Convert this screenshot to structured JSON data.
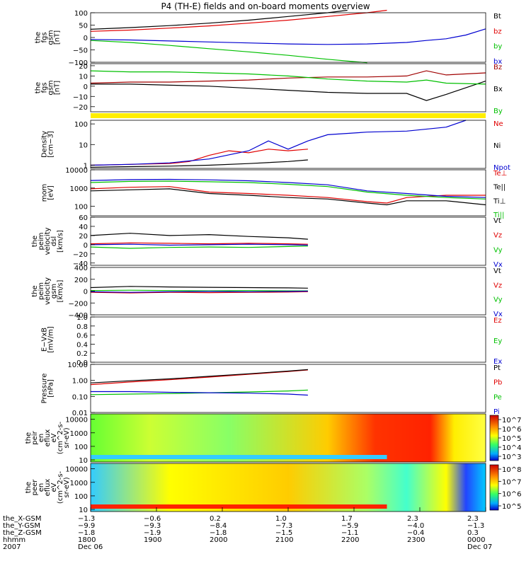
{
  "title": "P4 (TH-E) fields and on-board moments overview",
  "chart_data": [
    {
      "type": "line",
      "ylabel": [
        "the",
        "fgs",
        "gsm",
        "[nT]"
      ],
      "yticks": [
        "100",
        "50",
        "0",
        "−50",
        "−100"
      ],
      "ytick_values": [
        100,
        50,
        0,
        -50,
        -100
      ],
      "ylim": [
        -100,
        100
      ],
      "legend": [
        {
          "label": "Bt",
          "color": "#000000"
        },
        {
          "label": "bz",
          "color": "#e00000"
        },
        {
          "label": "by",
          "color": "#00c000"
        },
        {
          "label": "bx",
          "color": "#0000d0"
        }
      ],
      "series": [
        {
          "name": "Bt",
          "color": "#000000",
          "x": [
            0,
            0.1,
            0.2,
            0.3,
            0.4,
            0.5,
            0.6,
            0.65
          ],
          "y": [
            33,
            40,
            48,
            58,
            70,
            85,
            100,
            110
          ]
        },
        {
          "name": "bz",
          "color": "#e00000",
          "x": [
            0,
            0.1,
            0.2,
            0.3,
            0.4,
            0.5,
            0.6,
            0.7,
            0.75
          ],
          "y": [
            25,
            30,
            38,
            47,
            58,
            70,
            85,
            100,
            110
          ]
        },
        {
          "name": "by",
          "color": "#00c000",
          "x": [
            0,
            0.1,
            0.2,
            0.3,
            0.4,
            0.5,
            0.6,
            0.7
          ],
          "y": [
            -12,
            -20,
            -32,
            -45,
            -58,
            -72,
            -88,
            -102
          ]
        },
        {
          "name": "bx",
          "color": "#0000d0",
          "x": [
            0,
            0.1,
            0.2,
            0.3,
            0.4,
            0.5,
            0.6,
            0.7,
            0.8,
            0.85,
            0.9,
            0.95,
            1.0
          ],
          "y": [
            -8,
            -10,
            -14,
            -18,
            -22,
            -26,
            -28,
            -26,
            -20,
            -12,
            -5,
            10,
            35
          ]
        }
      ]
    },
    {
      "type": "line",
      "ylabel": [
        "the",
        "fgs",
        "gsm",
        "[nT]"
      ],
      "yticks": [
        "20",
        "10",
        "0",
        "−10",
        "−20"
      ],
      "ytick_values": [
        20,
        10,
        0,
        -10,
        -20
      ],
      "ylim": [
        -25,
        22
      ],
      "legend": [
        {
          "label": "Bz",
          "color": "#a00000"
        },
        {
          "label": "Bx",
          "color": "#000000"
        },
        {
          "label": "By",
          "color": "#00c000"
        }
      ],
      "series": [
        {
          "name": "Bz",
          "color": "#a00000",
          "x": [
            0,
            0.1,
            0.2,
            0.3,
            0.4,
            0.5,
            0.6,
            0.7,
            0.8,
            0.85,
            0.9,
            1.0
          ],
          "y": [
            3,
            4,
            4,
            5,
            6,
            8,
            9,
            9,
            10,
            15,
            11,
            13
          ]
        },
        {
          "name": "Bx",
          "color": "#000000",
          "x": [
            0,
            0.1,
            0.2,
            0.3,
            0.4,
            0.5,
            0.6,
            0.7,
            0.8,
            0.85,
            0.9,
            1.0
          ],
          "y": [
            2,
            2,
            1,
            0,
            -2,
            -4,
            -6,
            -7,
            -7,
            -14,
            -8,
            5
          ]
        },
        {
          "name": "By",
          "color": "#00c000",
          "x": [
            0,
            0.1,
            0.2,
            0.3,
            0.4,
            0.5,
            0.6,
            0.7,
            0.8,
            0.85,
            0.9,
            1.0
          ],
          "y": [
            15,
            14,
            14,
            13,
            12,
            10,
            7,
            5,
            4,
            6,
            3,
            2
          ]
        }
      ]
    },
    {
      "type": "line",
      "ylabel": [
        "Density",
        "[cm−3]"
      ],
      "yticks": [
        "100",
        "10",
        "1"
      ],
      "ytick_values": [
        100,
        10,
        1
      ],
      "ylim": [
        0.7,
        150
      ],
      "log": true,
      "legend": [
        {
          "label": "Ne",
          "color": "#e00000"
        },
        {
          "label": "Ni",
          "color": "#000000"
        },
        {
          "label": "Npot",
          "color": "#0000d0"
        }
      ],
      "series": [
        {
          "name": "Ne",
          "color": "#e00000",
          "x": [
            0,
            0.1,
            0.2,
            0.25,
            0.3,
            0.35,
            0.4,
            0.45,
            0.5,
            0.55
          ],
          "y": [
            1,
            1.1,
            1.2,
            1.5,
            3,
            5,
            4,
            6,
            5,
            6
          ]
        },
        {
          "name": "Ni",
          "color": "#000000",
          "x": [
            0,
            0.1,
            0.2,
            0.3,
            0.4,
            0.5,
            0.55
          ],
          "y": [
            0.8,
            0.85,
            0.9,
            1,
            1.2,
            1.5,
            1.8
          ]
        },
        {
          "name": "Npot",
          "color": "#0000d0",
          "x": [
            0,
            0.1,
            0.2,
            0.3,
            0.4,
            0.45,
            0.5,
            0.55,
            0.6,
            0.7,
            0.8,
            0.9,
            0.95
          ],
          "y": [
            1,
            1.1,
            1.3,
            2,
            5,
            15,
            6,
            15,
            30,
            40,
            45,
            70,
            150
          ]
        }
      ]
    },
    {
      "type": "line",
      "ylabel": [
        "mom",
        "[eV]"
      ],
      "yticks": [
        "10000",
        "1000",
        "100"
      ],
      "ytick_values": [
        10000,
        1000,
        100
      ],
      "ylim": [
        30,
        10000
      ],
      "log": true,
      "legend": [
        {
          "label": "Te⊥",
          "color": "#e00000"
        },
        {
          "label": "Te||",
          "color": "#000000"
        },
        {
          "label": "Ti⊥",
          "color": "#000000"
        },
        {
          "label": "Ti||",
          "color": "#00c000"
        }
      ],
      "series": [
        {
          "name": "Te⊥",
          "color": "#e00000",
          "x": [
            0,
            0.1,
            0.2,
            0.3,
            0.4,
            0.5,
            0.6,
            0.7,
            0.75,
            0.8,
            0.9,
            1.0
          ],
          "y": [
            900,
            1100,
            1200,
            600,
            500,
            400,
            300,
            180,
            150,
            300,
            400,
            400
          ]
        },
        {
          "name": "Te||",
          "color": "#000000",
          "x": [
            0,
            0.1,
            0.2,
            0.3,
            0.4,
            0.5,
            0.6,
            0.7,
            0.75,
            0.8,
            0.9,
            1.0
          ],
          "y": [
            700,
            800,
            900,
            500,
            400,
            300,
            250,
            150,
            120,
            200,
            200,
            120
          ]
        },
        {
          "name": "Ti⊥",
          "color": "#0000d0",
          "x": [
            0,
            0.1,
            0.2,
            0.3,
            0.4,
            0.5,
            0.6,
            0.7,
            0.8,
            0.9,
            1.0
          ],
          "y": [
            2600,
            2900,
            3000,
            2800,
            2500,
            2000,
            1500,
            700,
            500,
            350,
            300
          ]
        },
        {
          "name": "Ti||",
          "color": "#00c000",
          "x": [
            0,
            0.1,
            0.2,
            0.3,
            0.4,
            0.5,
            0.6,
            0.7,
            0.8,
            0.9,
            1.0
          ],
          "y": [
            2000,
            2300,
            2400,
            2200,
            2000,
            1600,
            1200,
            600,
            400,
            300,
            250
          ]
        }
      ]
    },
    {
      "type": "line",
      "ylabel": [
        "the",
        "peim",
        "velocity",
        "dsl",
        "[km/s]"
      ],
      "yticks": [
        "60",
        "40",
        "20",
        "0",
        "−20",
        "−40"
      ],
      "ytick_values": [
        60,
        40,
        20,
        0,
        -20,
        -40
      ],
      "ylim": [
        -45,
        60
      ],
      "legend": [
        {
          "label": "Vt",
          "color": "#000000"
        },
        {
          "label": "Vz",
          "color": "#e00000"
        },
        {
          "label": "Vy",
          "color": "#00c000"
        },
        {
          "label": "Vx",
          "color": "#0000d0"
        }
      ],
      "series": [
        {
          "name": "Vt",
          "color": "#000000",
          "x": [
            0,
            0.1,
            0.2,
            0.3,
            0.4,
            0.5,
            0.55
          ],
          "y": [
            20,
            25,
            20,
            22,
            18,
            15,
            12
          ]
        },
        {
          "name": "Vz",
          "color": "#e00000",
          "x": [
            0,
            0.1,
            0.2,
            0.3,
            0.4,
            0.5,
            0.55
          ],
          "y": [
            2,
            4,
            3,
            2,
            3,
            2,
            1
          ]
        },
        {
          "name": "Vy",
          "color": "#00c000",
          "x": [
            0,
            0.1,
            0.2,
            0.3,
            0.4,
            0.5,
            0.55
          ],
          "y": [
            -5,
            -8,
            -6,
            -5,
            -6,
            -4,
            -3
          ]
        },
        {
          "name": "Vx",
          "color": "#0000d0",
          "x": [
            0,
            0.1,
            0.2,
            0.3,
            0.4,
            0.5,
            0.55
          ],
          "y": [
            0,
            1,
            -1,
            0,
            1,
            0,
            -1
          ]
        }
      ]
    },
    {
      "type": "line",
      "ylabel": [
        "the",
        "peim",
        "velocity",
        "gsm",
        "[km/s]"
      ],
      "yticks": [
        "400",
        "200",
        "0",
        "−200",
        "−400"
      ],
      "ytick_values": [
        400,
        200,
        0,
        -200,
        -400
      ],
      "ylim": [
        -400,
        400
      ],
      "legend": [
        {
          "label": "Vt",
          "color": "#000000"
        },
        {
          "label": "Vz",
          "color": "#e00000"
        },
        {
          "label": "Vy",
          "color": "#00c000"
        },
        {
          "label": "Vx",
          "color": "#0000d0"
        }
      ],
      "series": [
        {
          "name": "Vt",
          "color": "#000000",
          "x": [
            0,
            0.1,
            0.2,
            0.3,
            0.4,
            0.5,
            0.55
          ],
          "y": [
            60,
            80,
            70,
            65,
            60,
            55,
            50
          ]
        },
        {
          "name": "Vz",
          "color": "#e00000",
          "x": [
            0,
            0.1,
            0.2,
            0.3,
            0.4,
            0.5,
            0.55
          ],
          "y": [
            -20,
            -30,
            -20,
            -25,
            -20,
            -15,
            -10
          ]
        },
        {
          "name": "Vy",
          "color": "#00c000",
          "x": [
            0,
            0.1,
            0.2,
            0.3,
            0.4,
            0.5,
            0.55
          ],
          "y": [
            10,
            15,
            10,
            5,
            10,
            5,
            5
          ]
        },
        {
          "name": "Vx",
          "color": "#0000d0",
          "x": [
            0,
            0.1,
            0.2,
            0.3,
            0.4,
            0.5,
            0.55
          ],
          "y": [
            -10,
            -20,
            -10,
            -5,
            -10,
            -5,
            0
          ]
        }
      ]
    },
    {
      "type": "line",
      "ylabel": [
        "E−VxB",
        "[mV/m]"
      ],
      "yticks": [
        "1.0",
        "0.8",
        "0.6",
        "0.4",
        "0.2",
        "0.0"
      ],
      "ytick_values": [
        1.0,
        0.8,
        0.6,
        0.4,
        0.2,
        0.0
      ],
      "ylim": [
        0,
        1.0
      ],
      "legend": [
        {
          "label": "Ez",
          "color": "#e00000"
        },
        {
          "label": "Ey",
          "color": "#00c000"
        },
        {
          "label": "Ex",
          "color": "#0000d0"
        }
      ],
      "series": []
    },
    {
      "type": "line",
      "ylabel": [
        "Pressure",
        "[nPa]"
      ],
      "yticks": [
        "10.00",
        "1.00",
        "0.10",
        "0.01"
      ],
      "ytick_values": [
        10,
        1,
        0.1,
        0.01
      ],
      "ylim": [
        0.01,
        10
      ],
      "log": true,
      "legend": [
        {
          "label": "Pt",
          "color": "#000000"
        },
        {
          "label": "Pb",
          "color": "#e00000"
        },
        {
          "label": "Pe",
          "color": "#00c000"
        },
        {
          "label": "Pi",
          "color": "#0000d0"
        }
      ],
      "series": [
        {
          "name": "Pb",
          "color": "#e00000",
          "x": [
            0,
            0.1,
            0.2,
            0.3,
            0.4,
            0.5,
            0.55
          ],
          "y": [
            0.55,
            0.8,
            1.1,
            1.6,
            2.4,
            3.6,
            4.5
          ]
        },
        {
          "name": "Pt",
          "color": "#000000",
          "x": [
            0,
            0.1,
            0.2,
            0.3,
            0.4,
            0.5,
            0.55
          ],
          "y": [
            0.7,
            0.95,
            1.25,
            1.8,
            2.6,
            3.8,
            4.7
          ]
        },
        {
          "name": "Pe",
          "color": "#00c000",
          "x": [
            0,
            0.1,
            0.2,
            0.3,
            0.4,
            0.5,
            0.55
          ],
          "y": [
            0.13,
            0.14,
            0.15,
            0.17,
            0.19,
            0.22,
            0.25
          ]
        },
        {
          "name": "Pi",
          "color": "#0000d0",
          "x": [
            0,
            0.1,
            0.2,
            0.3,
            0.4,
            0.5,
            0.55
          ],
          "y": [
            0.2,
            0.2,
            0.18,
            0.17,
            0.16,
            0.14,
            0.12
          ]
        }
      ]
    },
    {
      "type": "heatmap",
      "ylabel": [
        "the",
        "peir",
        "en",
        "eflux",
        "eV",
        "(cm^2-s-",
        "sr-eV)"
      ],
      "yticks": [
        "10000",
        "1000",
        "100",
        "10"
      ],
      "ytick_values": [
        10000,
        1000,
        100,
        10
      ],
      "ylim": [
        7,
        25000
      ],
      "log": true,
      "colorbar_ticks": [
        "10^7",
        "10^6",
        "10^5",
        "10^4",
        "10^3"
      ]
    },
    {
      "type": "heatmap",
      "ylabel": [
        "the",
        "peer",
        "en",
        "eflux",
        "eV",
        "(cm^2-s-",
        "sr-eV)"
      ],
      "yticks": [
        "10000",
        "1000",
        "100",
        "10"
      ],
      "ytick_values": [
        10000,
        1000,
        100,
        10
      ],
      "ylim": [
        7,
        25000
      ],
      "log": true,
      "colorbar_ticks": [
        "10^8",
        "10^7",
        "10^6",
        "10^5"
      ]
    }
  ],
  "xaxis": {
    "row_labels": [
      "the_X-GSM",
      "the_Y-GSM",
      "the_Z-GSM",
      "hhmm",
      "2007"
    ],
    "columns": [
      {
        "values": [
          "−1.3",
          "−9.9",
          "−1.8",
          "1800",
          "Dec 06"
        ]
      },
      {
        "values": [
          "−0.6",
          "−9.3",
          "−1.9",
          "1900",
          ""
        ]
      },
      {
        "values": [
          "0.2",
          "−8.4",
          "−1.8",
          "2000",
          ""
        ]
      },
      {
        "values": [
          "1.0",
          "−7.3",
          "−1.5",
          "2100",
          ""
        ]
      },
      {
        "values": [
          "1.7",
          "−5.9",
          "−1.1",
          "2200",
          ""
        ]
      },
      {
        "values": [
          "2.3",
          "−4.0",
          "−0.4",
          "2300",
          ""
        ]
      },
      {
        "values": [
          "2.3",
          "−1.3",
          "0.3",
          "0000",
          "Dec 07"
        ]
      }
    ]
  }
}
